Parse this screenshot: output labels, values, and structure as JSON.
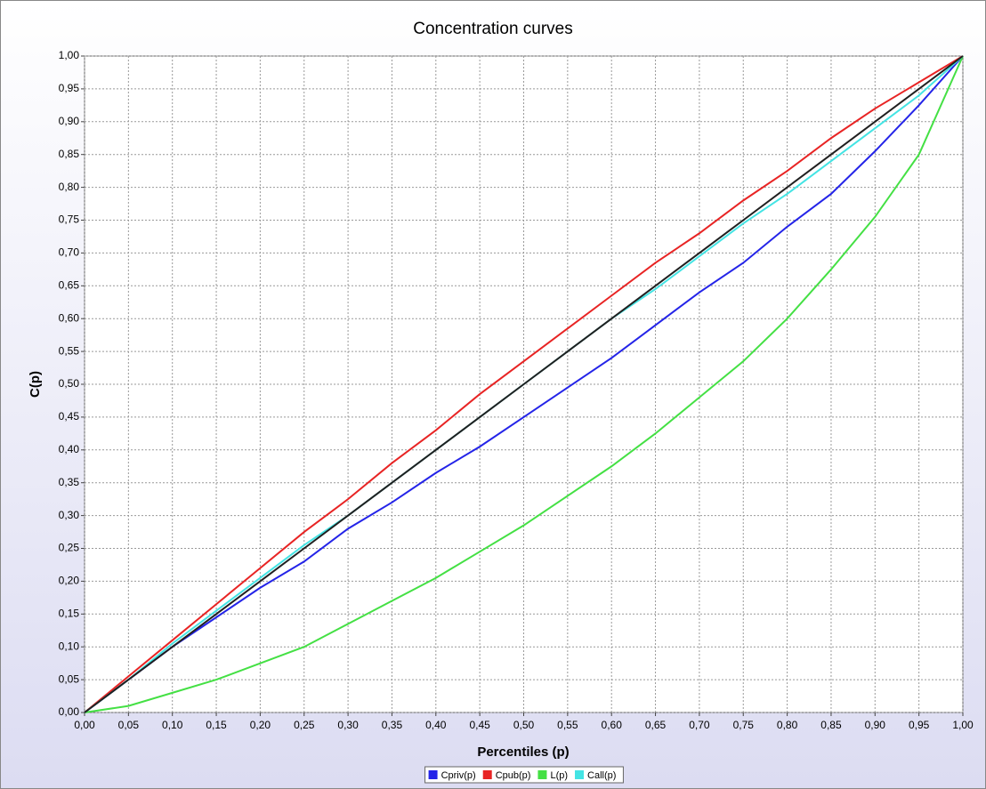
{
  "chart_data": {
    "type": "line",
    "title": "Concentration curves",
    "x_label": "Percentiles (p)",
    "y_label": "C(p)",
    "x": [
      0,
      0.05,
      0.1,
      0.15,
      0.2,
      0.25,
      0.3,
      0.35,
      0.4,
      0.45,
      0.5,
      0.55,
      0.6,
      0.65,
      0.7,
      0.75,
      0.8,
      0.85,
      0.9,
      0.95,
      1
    ],
    "series": [
      {
        "name": "Cpriv(p)",
        "color": "#2424e8",
        "values": [
          0,
          0.05,
          0.1,
          0.145,
          0.19,
          0.23,
          0.28,
          0.32,
          0.365,
          0.405,
          0.45,
          0.495,
          0.54,
          0.59,
          0.64,
          0.685,
          0.74,
          0.79,
          0.855,
          0.925,
          1
        ]
      },
      {
        "name": "Cpub(p)",
        "color": "#e82424",
        "values": [
          0,
          0.055,
          0.11,
          0.165,
          0.22,
          0.275,
          0.325,
          0.38,
          0.43,
          0.485,
          0.535,
          0.585,
          0.635,
          0.685,
          0.73,
          0.78,
          0.825,
          0.875,
          0.92,
          0.96,
          1
        ]
      },
      {
        "name": "L(p)",
        "color": "#44e044",
        "values": [
          0,
          0.01,
          0.03,
          0.05,
          0.075,
          0.1,
          0.135,
          0.17,
          0.205,
          0.245,
          0.285,
          0.33,
          0.375,
          0.425,
          0.48,
          0.535,
          0.6,
          0.675,
          0.755,
          0.85,
          1
        ]
      },
      {
        "name": "Call(p)",
        "color": "#44e4e4",
        "values": [
          0,
          0.05,
          0.105,
          0.155,
          0.205,
          0.255,
          0.3,
          0.35,
          0.4,
          0.45,
          0.5,
          0.55,
          0.6,
          0.645,
          0.695,
          0.745,
          0.79,
          0.84,
          0.89,
          0.94,
          1
        ]
      },
      {
        "color": "#202020",
        "values": [
          0,
          0.05,
          0.1,
          0.15,
          0.2,
          0.25,
          0.3,
          0.35,
          0.4,
          0.45,
          0.5,
          0.55,
          0.6,
          0.65,
          0.7,
          0.75,
          0.8,
          0.85,
          0.9,
          0.95,
          1
        ]
      }
    ],
    "xlim": [
      0,
      1
    ],
    "ylim": [
      0,
      1
    ],
    "xticks": [
      {
        "value": 0,
        "label": "0,00"
      },
      {
        "value": 0.05,
        "label": "0,05"
      },
      {
        "value": 0.1,
        "label": "0,10"
      },
      {
        "value": 0.15,
        "label": "0,15"
      },
      {
        "value": 0.2,
        "label": "0,20"
      },
      {
        "value": 0.25,
        "label": "0,25"
      },
      {
        "value": 0.3,
        "label": "0,30"
      },
      {
        "value": 0.35,
        "label": "0,35"
      },
      {
        "value": 0.4,
        "label": "0,40"
      },
      {
        "value": 0.45,
        "label": "0,45"
      },
      {
        "value": 0.5,
        "label": "0,50"
      },
      {
        "value": 0.55,
        "label": "0,55"
      },
      {
        "value": 0.6,
        "label": "0,60"
      },
      {
        "value": 0.65,
        "label": "0,65"
      },
      {
        "value": 0.7,
        "label": "0,70"
      },
      {
        "value": 0.75,
        "label": "0,75"
      },
      {
        "value": 0.8,
        "label": "0,80"
      },
      {
        "value": 0.85,
        "label": "0,85"
      },
      {
        "value": 0.9,
        "label": "0,90"
      },
      {
        "value": 0.95,
        "label": "0,95"
      },
      {
        "value": 1,
        "label": "1,00"
      }
    ],
    "yticks": [
      {
        "value": 0,
        "label": "0,00"
      },
      {
        "value": 0.05,
        "label": "0,05"
      },
      {
        "value": 0.1,
        "label": "0,10"
      },
      {
        "value": 0.15,
        "label": "0,15"
      },
      {
        "value": 0.2,
        "label": "0,20"
      },
      {
        "value": 0.25,
        "label": "0,25"
      },
      {
        "value": 0.3,
        "label": "0,30"
      },
      {
        "value": 0.35,
        "label": "0,35"
      },
      {
        "value": 0.4,
        "label": "0,40"
      },
      {
        "value": 0.45,
        "label": "0,45"
      },
      {
        "value": 0.5,
        "label": "0,50"
      },
      {
        "value": 0.55,
        "label": "0,55"
      },
      {
        "value": 0.6,
        "label": "0,60"
      },
      {
        "value": 0.65,
        "label": "0,65"
      },
      {
        "value": 0.7,
        "label": "0,70"
      },
      {
        "value": 0.75,
        "label": "0,75"
      },
      {
        "value": 0.8,
        "label": "0,80"
      },
      {
        "value": 0.85,
        "label": "0,85"
      },
      {
        "value": 0.9,
        "label": "0,90"
      },
      {
        "value": 0.95,
        "label": "0,95"
      },
      {
        "value": 1,
        "label": "1,00"
      }
    ],
    "grid": true,
    "legend": "bottom"
  }
}
